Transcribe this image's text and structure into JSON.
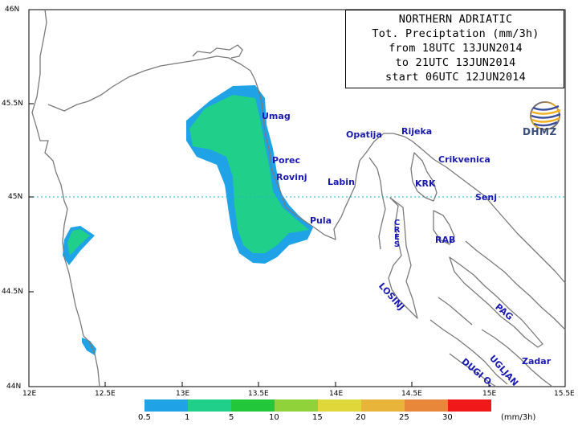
{
  "title": {
    "lines": [
      "NORTHERN ADRIATIC",
      "Tot. Preciptation (mm/3h)",
      "from 18UTC 13JUN2014",
      "to 21UTC 13JUN2014",
      "start 06UTC 12JUN2014"
    ]
  },
  "logo": {
    "text": "DHMZ",
    "icon": "dhmz-logo-icon"
  },
  "axes": {
    "x_ticks": [
      "12E",
      "12.5E",
      "13E",
      "13.5E",
      "14E",
      "14.5E",
      "15E",
      "15.5E"
    ],
    "y_ticks": [
      "46N",
      "45.5N",
      "45N",
      "44.5N",
      "44N"
    ]
  },
  "places": [
    {
      "id": "umag",
      "name": "Umag"
    },
    {
      "id": "porec",
      "name": "Porec"
    },
    {
      "id": "rovinj",
      "name": "Rovinj"
    },
    {
      "id": "pula",
      "name": "Pula"
    },
    {
      "id": "labin",
      "name": "Labin"
    },
    {
      "id": "opatija",
      "name": "Opatija"
    },
    {
      "id": "rijeka",
      "name": "Rijeka"
    },
    {
      "id": "crikvenica",
      "name": "Crikvenica"
    },
    {
      "id": "krk",
      "name": "KRK"
    },
    {
      "id": "senj",
      "name": "Senj"
    },
    {
      "id": "cres",
      "name": "CRES"
    },
    {
      "id": "rab",
      "name": "RAB"
    },
    {
      "id": "losinj",
      "name": "LOSINJ"
    },
    {
      "id": "pag",
      "name": "PAG"
    },
    {
      "id": "ugljan",
      "name": "UGLJAN"
    },
    {
      "id": "dugi-o",
      "name": "DUGI O."
    },
    {
      "id": "zadar",
      "name": "Zadar"
    }
  ],
  "legend": {
    "labels": [
      "0.5",
      "1",
      "5",
      "10",
      "15",
      "20",
      "25",
      "30"
    ],
    "unit": "(mm/3h)",
    "colors": [
      "#1fa3e6",
      "#1fcf8a",
      "#22c83a",
      "#8fd23a",
      "#e0d83a",
      "#e8b43a",
      "#e8863a",
      "#f01818"
    ]
  },
  "colors": {
    "precip_low": "#1fa3e6",
    "precip_mid": "#1fcf8a",
    "coast": "#7a7a7a",
    "reference_line": "#22b5c8"
  }
}
